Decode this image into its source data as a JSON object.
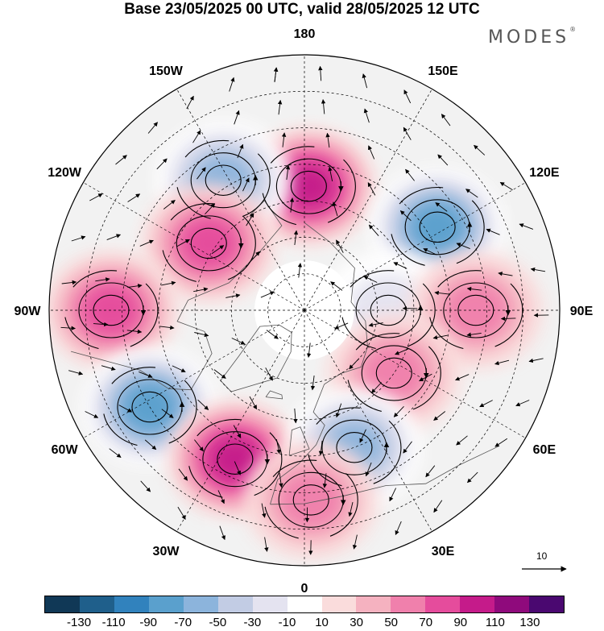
{
  "header": {
    "title": "Base 23/05/2025 00 UTC, valid 28/05/2025 12 UTC",
    "brand": "MODES"
  },
  "map": {
    "longitude_labels": [
      {
        "text": "180",
        "lon": 180
      },
      {
        "text": "150E",
        "lon": 150
      },
      {
        "text": "120E",
        "lon": 120
      },
      {
        "text": "90E",
        "lon": 90
      },
      {
        "text": "60E",
        "lon": 60
      },
      {
        "text": "30E",
        "lon": 30
      },
      {
        "text": "0",
        "lon": 0
      },
      {
        "text": "30W",
        "lon": -30
      },
      {
        "text": "60W",
        "lon": -60
      },
      {
        "text": "90W",
        "lon": -90
      },
      {
        "text": "120W",
        "lon": -120
      },
      {
        "text": "150W",
        "lon": -150
      }
    ],
    "anomaly_centers": [
      {
        "sign": "positive",
        "lon": 178,
        "lat": 56,
        "value": 95
      },
      {
        "sign": "negative",
        "lon": -148,
        "lat": 48,
        "value": -85
      },
      {
        "sign": "negative",
        "lon": 122,
        "lat": 47,
        "value": -90
      },
      {
        "sign": "positive",
        "lon": -125,
        "lat": 58,
        "value": 80
      },
      {
        "sign": "positive",
        "lon": -90,
        "lat": 37,
        "value": 75
      },
      {
        "sign": "negative",
        "lon": 90,
        "lat": 67,
        "value": -45
      },
      {
        "sign": "positive",
        "lon": 90,
        "lat": 43,
        "value": 65
      },
      {
        "sign": "positive",
        "lon": 55,
        "lat": 60,
        "value": 55
      },
      {
        "sign": "negative",
        "lon": -58,
        "lat": 40,
        "value": -100
      },
      {
        "sign": "positive",
        "lon": -25,
        "lat": 45,
        "value": 95
      },
      {
        "sign": "negative",
        "lon": 20,
        "lat": 50,
        "value": -75
      },
      {
        "sign": "positive",
        "lon": 2,
        "lat": 38,
        "value": 50
      }
    ],
    "reference_vector": {
      "value": "10"
    }
  },
  "colorbar": {
    "colors": [
      "#103856",
      "#1f5f8b",
      "#3182bd",
      "#5aa0cd",
      "#8cb4dc",
      "#c2cce4",
      "#e4e3f0",
      "#ffffff",
      "#fadcdc",
      "#f5b2c0",
      "#f080ac",
      "#e54c9c",
      "#c51b8a",
      "#8f0a7c",
      "#4a0870"
    ],
    "tick_labels": [
      "-130",
      "-110",
      "-90",
      "-70",
      "-50",
      "-30",
      "-10",
      "10",
      "30",
      "50",
      "70",
      "90",
      "110",
      "130"
    ]
  }
}
